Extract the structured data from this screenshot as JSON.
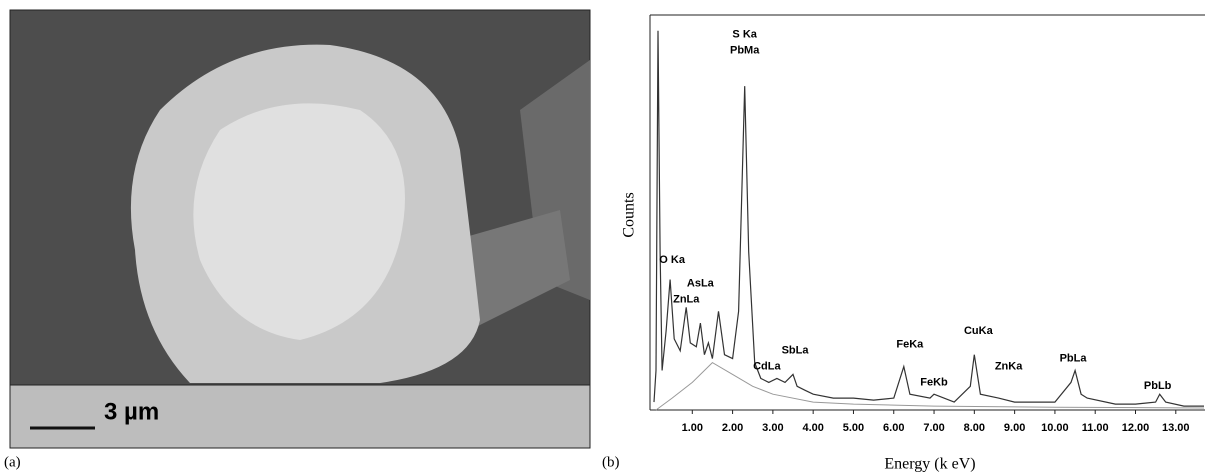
{
  "panels": {
    "a": {
      "label": "(a)",
      "scale_bar": "3 µm"
    },
    "b": {
      "label": "(b)"
    }
  },
  "chart_data": {
    "type": "line",
    "x_label": "Energy (k eV)",
    "y_label": "Counts",
    "xlim": [
      0,
      13.7
    ],
    "ylim": [
      0,
      100
    ],
    "xticks": [
      {
        "value": 1,
        "label": "1.00"
      },
      {
        "value": 2,
        "label": "2.00"
      },
      {
        "value": 3,
        "label": "3.00"
      },
      {
        "value": 4,
        "label": "4.00"
      },
      {
        "value": 5,
        "label": "5.00"
      },
      {
        "value": 6,
        "label": "6.00"
      },
      {
        "value": 7,
        "label": "7.00"
      },
      {
        "value": 8,
        "label": "8.00"
      },
      {
        "value": 9,
        "label": "9.00"
      },
      {
        "value": 10,
        "label": "10.00"
      },
      {
        "value": 11,
        "label": "11.00"
      },
      {
        "value": 12,
        "label": "12.00"
      },
      {
        "value": 13,
        "label": "13.00"
      }
    ],
    "series": [
      {
        "color": "#333333",
        "x": [
          0.05,
          0.1,
          0.15,
          0.2,
          0.25,
          0.35,
          0.45,
          0.55,
          0.7,
          0.85,
          0.95,
          1.1,
          1.2,
          1.3,
          1.4,
          1.5,
          1.65,
          1.8,
          2.0,
          2.15,
          2.3,
          2.4,
          2.55,
          2.7,
          2.9,
          3.1,
          3.3,
          3.5,
          3.6,
          3.8,
          4.0,
          4.5,
          5.0,
          5.5,
          6.0,
          6.25,
          6.4,
          6.9,
          7.0,
          7.5,
          7.9,
          8.0,
          8.15,
          8.6,
          9.0,
          9.5,
          10.0,
          10.4,
          10.5,
          10.65,
          10.8,
          11.5,
          12.0,
          12.5,
          12.6,
          12.75,
          13.2,
          13.7
        ],
        "values": [
          2,
          10,
          96,
          40,
          10,
          20,
          33,
          18,
          15,
          26,
          17,
          16,
          22,
          14,
          17,
          13,
          25,
          14,
          13,
          25,
          82,
          40,
          12,
          8,
          7,
          8,
          7,
          9,
          6,
          5,
          4,
          3,
          3,
          2.5,
          3,
          11,
          4,
          3,
          4,
          2,
          6,
          14,
          4,
          3,
          2,
          2,
          2,
          7,
          10,
          4,
          3,
          1.5,
          1.5,
          2,
          4,
          2,
          1,
          1
        ]
      },
      {
        "color": "#999999",
        "x": [
          0.1,
          0.5,
          1.0,
          1.5,
          2.0,
          2.5,
          3.0,
          4.0,
          5.0,
          7.0,
          10.0,
          13.7
        ],
        "values": [
          0,
          3,
          7,
          12,
          9,
          6,
          4,
          2,
          1.5,
          1,
          0.7,
          0.5
        ]
      }
    ],
    "annotations": [
      {
        "text": "S Ka",
        "x": 2.3,
        "y": 95
      },
      {
        "text": "PbMa",
        "x": 2.3,
        "y": 91
      },
      {
        "text": "O Ka",
        "x": 0.5,
        "y": 38
      },
      {
        "text": "ZnLa",
        "x": 0.85,
        "y": 28
      },
      {
        "text": "AsLa",
        "x": 1.2,
        "y": 32
      },
      {
        "text": "CdLa",
        "x": 2.85,
        "y": 11
      },
      {
        "text": "SbLa",
        "x": 3.55,
        "y": 15
      },
      {
        "text": "FeKa",
        "x": 6.4,
        "y": 16.5
      },
      {
        "text": "FeKb",
        "x": 7.0,
        "y": 7
      },
      {
        "text": "CuKa",
        "x": 8.1,
        "y": 20
      },
      {
        "text": "ZnKa",
        "x": 8.85,
        "y": 11
      },
      {
        "text": "PbLa",
        "x": 10.45,
        "y": 13
      },
      {
        "text": "PbLb",
        "x": 12.55,
        "y": 6
      }
    ]
  }
}
